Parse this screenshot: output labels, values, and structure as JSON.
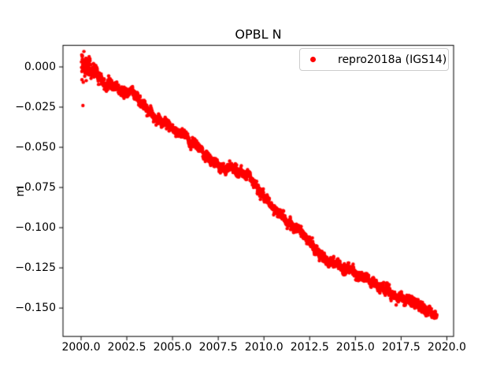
{
  "colors": {
    "background": "#ffffff",
    "series_red": "#ff0000",
    "text": "#000000",
    "spine": "#000000",
    "legend_border": "#cccccc"
  },
  "chart_data": {
    "type": "scatter",
    "title": "OPBL N",
    "xlabel": "",
    "ylabel": "m",
    "grid": false,
    "xlim": [
      1999.01,
      2020.37
    ],
    "ylim": [
      -0.16765,
      0.01342
    ],
    "x_ticks": [
      2000.0,
      2002.5,
      2005.0,
      2007.5,
      2010.0,
      2012.5,
      2015.0,
      2017.5,
      2020.0
    ],
    "x_tick_labels": [
      "2000.0",
      "2002.5",
      "2005.0",
      "2007.5",
      "2010.0",
      "2012.5",
      "2015.0",
      "2017.5",
      "2020.0"
    ],
    "y_ticks": [
      0.0,
      -0.025,
      -0.05,
      -0.075,
      -0.1,
      -0.125,
      -0.15
    ],
    "y_tick_labels": [
      "0.000",
      "−0.025",
      "−0.050",
      "−0.075",
      "−0.100",
      "−0.125",
      "−0.150"
    ],
    "legend": {
      "location": "upper right",
      "entries": [
        {
          "label": "repro2018a (IGS14)",
          "color": "#ff0000",
          "marker": "point"
        }
      ]
    },
    "series": [
      {
        "name": "repro2018a (IGS14)",
        "color": "#ff0000",
        "marker": "point",
        "marker_radius_px": 2.2,
        "x_start": 2000.02,
        "x_end": 2019.45,
        "n_points": 2600,
        "seed": 42,
        "trend_points": [
          [
            2000.0,
            0.002
          ],
          [
            2001.2,
            -0.0075
          ],
          [
            2002.5,
            -0.018
          ],
          [
            2005.0,
            -0.039
          ],
          [
            2007.5,
            -0.059
          ],
          [
            2008.7,
            -0.0665
          ],
          [
            2010.0,
            -0.0775
          ],
          [
            2010.35,
            -0.0855
          ],
          [
            2012.5,
            -0.111
          ],
          [
            2015.0,
            -0.13
          ],
          [
            2017.0,
            -0.1415
          ],
          [
            2018.3,
            -0.1495
          ],
          [
            2019.45,
            -0.1545
          ]
        ],
        "trend_points_note": "piecewise-linear trend (year, metres); ~-8 mm/yr with small offset near 2010.1",
        "noise_sigma_m": 0.0022,
        "early_noise_factor": 2.4,
        "early_noise_until": 2000.5,
        "outliers": [
          [
            2000.1,
            -0.024
          ],
          [
            2000.12,
            -0.0095
          ],
          [
            2000.28,
            -0.0085
          ]
        ]
      }
    ]
  }
}
